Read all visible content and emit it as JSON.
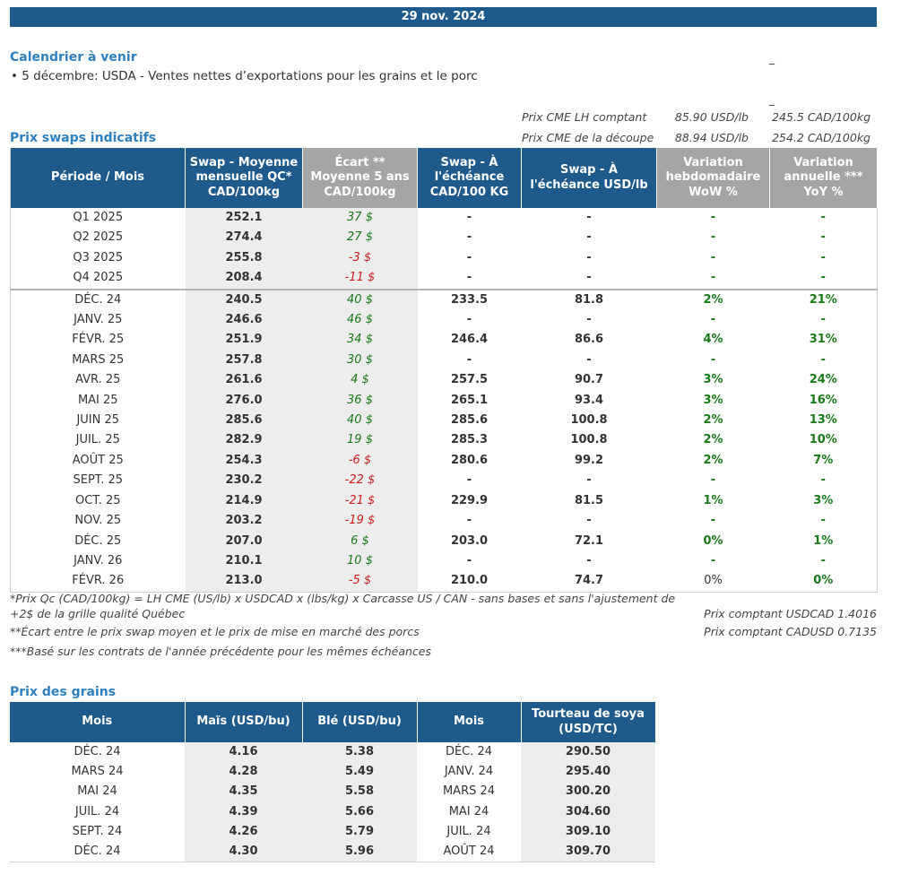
{
  "banner": {
    "date": "29 nov. 2024"
  },
  "calendar": {
    "title": "Calendrier à venir",
    "items": [
      "• 5 décembre: USDA - Ventes nettes d’exportations pour les grains et le porc"
    ],
    "marks": [
      "_",
      "_"
    ]
  },
  "cme": [
    {
      "label": "Prix CME LH comptant",
      "usd": "85.90 USD/lb",
      "cad": "245.5 CAD/100kg"
    },
    {
      "label": "Prix CME de la découpe",
      "usd": "88.94 USD/lb",
      "cad": "254.2 CAD/100kg"
    }
  ],
  "swaps": {
    "title": "Prix swaps indicatifs",
    "headers": [
      "Période / Mois",
      "Swap - Moyenne mensuelle QC* CAD/100kg",
      "Écart ** Moyenne 5 ans CAD/100kg",
      "Swap - À l'échéance CAD/100 KG",
      "Swap - À l'échéance USD/lb",
      "Variation hebdomadaire WoW %",
      "Variation annuelle *** YoY %"
    ],
    "rows": [
      {
        "period": "Q1 2025",
        "swap": "252.1",
        "ecart": "37 $",
        "ecart_sign": "pos",
        "cad": "-",
        "usd": "-",
        "wow": "-",
        "yoy": "-"
      },
      {
        "period": "Q2 2025",
        "swap": "274.4",
        "ecart": "27 $",
        "ecart_sign": "pos",
        "cad": "-",
        "usd": "-",
        "wow": "-",
        "yoy": "-"
      },
      {
        "period": "Q3 2025",
        "swap": "255.8",
        "ecart": "-3 $",
        "ecart_sign": "neg",
        "cad": "-",
        "usd": "-",
        "wow": "-",
        "yoy": "-"
      },
      {
        "period": "Q4 2025",
        "swap": "208.4",
        "ecart": "-11 $",
        "ecart_sign": "neg",
        "cad": "-",
        "usd": "-",
        "wow": "-",
        "yoy": "-"
      },
      {
        "period": "DÉC. 24",
        "swap": "240.5",
        "ecart": "40 $",
        "ecart_sign": "pos",
        "cad": "233.5",
        "usd": "81.8",
        "wow": "2%",
        "yoy": "21%",
        "sep": true
      },
      {
        "period": "JANV. 25",
        "swap": "246.6",
        "ecart": "46 $",
        "ecart_sign": "pos",
        "cad": "-",
        "usd": "-",
        "wow": "-",
        "yoy": "-"
      },
      {
        "period": "FÉVR. 25",
        "swap": "251.9",
        "ecart": "34 $",
        "ecart_sign": "pos",
        "cad": "246.4",
        "usd": "86.6",
        "wow": "4%",
        "yoy": "31%"
      },
      {
        "period": "MARS 25",
        "swap": "257.8",
        "ecart": "30 $",
        "ecart_sign": "pos",
        "cad": "-",
        "usd": "-",
        "wow": "-",
        "yoy": "-"
      },
      {
        "period": "AVR. 25",
        "swap": "261.6",
        "ecart": "4 $",
        "ecart_sign": "pos",
        "cad": "257.5",
        "usd": "90.7",
        "wow": "3%",
        "yoy": "24%"
      },
      {
        "period": "MAI 25",
        "swap": "276.0",
        "ecart": "36 $",
        "ecart_sign": "pos",
        "cad": "265.1",
        "usd": "93.4",
        "wow": "3%",
        "yoy": "16%"
      },
      {
        "period": "JUIN 25",
        "swap": "285.6",
        "ecart": "40 $",
        "ecart_sign": "pos",
        "cad": "285.6",
        "usd": "100.8",
        "wow": "2%",
        "yoy": "13%"
      },
      {
        "period": "JUIL. 25",
        "swap": "282.9",
        "ecart": "19 $",
        "ecart_sign": "pos",
        "cad": "285.3",
        "usd": "100.8",
        "wow": "2%",
        "yoy": "10%"
      },
      {
        "period": "AOÛT 25",
        "swap": "254.3",
        "ecart": "-6 $",
        "ecart_sign": "neg",
        "cad": "280.6",
        "usd": "99.2",
        "wow": "2%",
        "yoy": "7%"
      },
      {
        "period": "SEPT. 25",
        "swap": "230.2",
        "ecart": "-22 $",
        "ecart_sign": "neg",
        "cad": "-",
        "usd": "-",
        "wow": "-",
        "yoy": "-"
      },
      {
        "period": "OCT. 25",
        "swap": "214.9",
        "ecart": "-21 $",
        "ecart_sign": "neg",
        "cad": "229.9",
        "usd": "81.5",
        "wow": "1%",
        "yoy": "3%"
      },
      {
        "period": "NOV. 25",
        "swap": "203.2",
        "ecart": "-19 $",
        "ecart_sign": "neg",
        "cad": "-",
        "usd": "-",
        "wow": "-",
        "yoy": "-"
      },
      {
        "period": "DÉC. 25",
        "swap": "207.0",
        "ecart": "6 $",
        "ecart_sign": "pos",
        "cad": "203.0",
        "usd": "72.1",
        "wow": "0%",
        "yoy": "1%"
      },
      {
        "period": "JANV. 26",
        "swap": "210.1",
        "ecart": "10 $",
        "ecart_sign": "pos",
        "cad": "-",
        "usd": "-",
        "wow": "-",
        "yoy": "-"
      },
      {
        "period": "FÉVR. 26",
        "swap": "213.0",
        "ecart": "-5 $",
        "ecart_sign": "neg",
        "cad": "210.0",
        "usd": "74.7",
        "wow": "0%",
        "yoy": "0%",
        "wow_plain": true
      }
    ]
  },
  "footnotes": {
    "note1_line1": "*Prix Qc (CAD/100kg) = LH CME (US/lb) x USDCAD x (lbs/kg) x Carcasse US / CAN - sans bases et sans l'ajustement de",
    "note1_line2": "+2$ de la grille qualité Québec",
    "note2": "**Écart entre le prix swap moyen et le prix de mise en marché des porcs",
    "note3": "***Basé sur les contrats de l'année précédente pour les mêmes échéances",
    "usdcad": "Prix comptant USDCAD 1.4016",
    "cadusd": "Prix comptant CADUSD 0.7135"
  },
  "grains": {
    "title": "Prix des grains",
    "headers": [
      "Mois",
      "Maïs (USD/bu)",
      "Blé (USD/bu)",
      "Mois",
      "Tourteau de soya (USD/TC)"
    ],
    "rows": [
      {
        "mois": "DÉC. 24",
        "mais": "4.16",
        "ble": "5.38",
        "mois2": "DÉC. 24",
        "soya": "290.50"
      },
      {
        "mois": "MARS 24",
        "mais": "4.28",
        "ble": "5.49",
        "mois2": "JANV. 24",
        "soya": "295.40"
      },
      {
        "mois": "MAI 24",
        "mais": "4.35",
        "ble": "5.58",
        "mois2": "MARS 24",
        "soya": "300.20"
      },
      {
        "mois": "JUIL. 24",
        "mais": "4.39",
        "ble": "5.66",
        "mois2": "MAI 24",
        "soya": "304.60"
      },
      {
        "mois": "SEPT. 24",
        "mais": "4.26",
        "ble": "5.79",
        "mois2": "JUIL. 24",
        "soya": "309.10"
      },
      {
        "mois": "DÉC. 24",
        "mais": "4.30",
        "ble": "5.96",
        "mois2": "AOÛT 24",
        "soya": "309.70"
      }
    ]
  }
}
